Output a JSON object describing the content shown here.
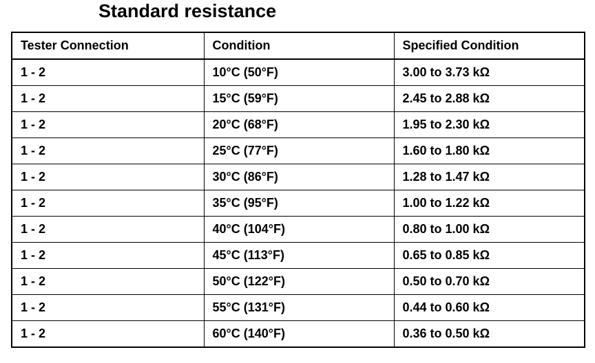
{
  "header": {
    "title": "Standard resistance"
  },
  "table": {
    "columns": [
      "Tester Connection",
      "Condition",
      "Specified Condition"
    ],
    "rows": [
      [
        "1 - 2",
        "10°C (50°F)",
        "3.00 to 3.73 kΩ"
      ],
      [
        "1 - 2",
        "15°C (59°F)",
        "2.45 to 2.88 kΩ"
      ],
      [
        "1 - 2",
        "20°C (68°F)",
        "1.95 to 2.30 kΩ"
      ],
      [
        "1 - 2",
        "25°C (77°F)",
        "1.60 to 1.80 kΩ"
      ],
      [
        "1 - 2",
        "30°C (86°F)",
        "1.28 to 1.47 kΩ"
      ],
      [
        "1 - 2",
        "35°C (95°F)",
        "1.00 to 1.22 kΩ"
      ],
      [
        "1 - 2",
        "40°C (104°F)",
        "0.80 to 1.00 kΩ"
      ],
      [
        "1 - 2",
        "45°C (113°F)",
        "0.65 to 0.85 kΩ"
      ],
      [
        "1 - 2",
        "50°C (122°F)",
        "0.50 to 0.70 kΩ"
      ],
      [
        "1 - 2",
        "55°C (131°F)",
        "0.44 to 0.60 kΩ"
      ],
      [
        "1 - 2",
        "60°C (140°F)",
        "0.36 to 0.50 kΩ"
      ]
    ]
  }
}
